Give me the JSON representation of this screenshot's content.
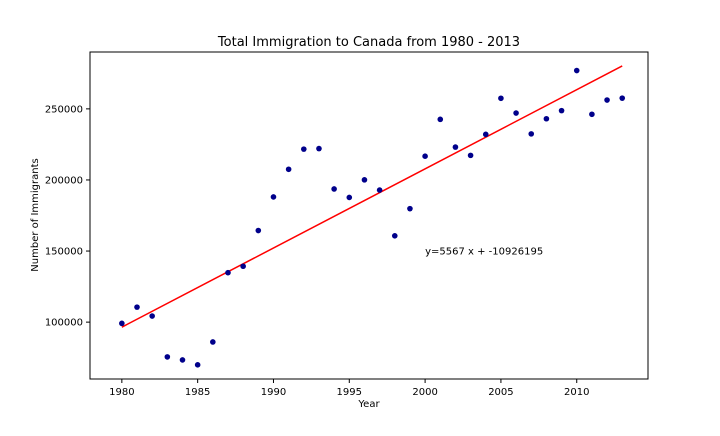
{
  "chart_data": {
    "type": "scatter",
    "title": "Total Immigration to Canada from 1980 - 2013",
    "xlabel": "Year",
    "ylabel": "Number of Immigrants",
    "xlim": [
      1977.9,
      2014.7
    ],
    "ylim": [
      60000,
      290000
    ],
    "xticks": [
      1980,
      1985,
      1990,
      1995,
      2000,
      2005,
      2010
    ],
    "yticks": [
      100000,
      150000,
      200000,
      250000
    ],
    "grid": false,
    "point_color": "#00008b",
    "fit_color": "#ff0000",
    "points": {
      "x": [
        1980,
        1981,
        1982,
        1983,
        1984,
        1985,
        1986,
        1987,
        1988,
        1989,
        1990,
        1991,
        1992,
        1993,
        1994,
        1995,
        1996,
        1997,
        1998,
        1999,
        2000,
        2001,
        2002,
        2003,
        2004,
        2005,
        2006,
        2007,
        2008,
        2009,
        2010,
        2011,
        2012,
        2013
      ],
      "y": [
        99137,
        110563,
        104271,
        75550,
        73417,
        69978,
        86048,
        134771,
        139306,
        164432,
        188054,
        207509,
        221687,
        222049,
        193665,
        187712,
        200085,
        192885,
        160727,
        179818,
        216712,
        242638,
        223111,
        217297,
        232083,
        257457,
        247057,
        232405,
        243047,
        248768,
        276956,
        246194,
        256222,
        257537
      ]
    },
    "fit_line": {
      "slope": 5567,
      "intercept": -10926195,
      "x_range": [
        1980,
        2013
      ]
    },
    "annotation": "y=5567 x + -10926195",
    "annotation_position": {
      "x": 2000,
      "y": 150000
    }
  }
}
